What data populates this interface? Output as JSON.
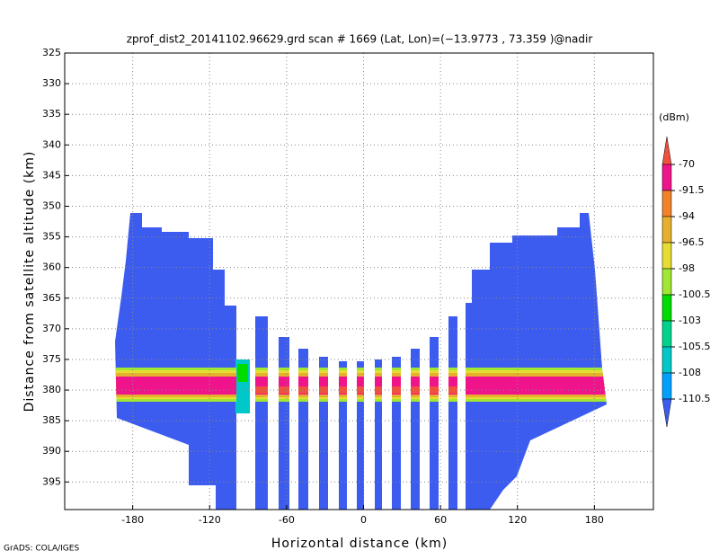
{
  "chart_data": {
    "type": "heatmap",
    "title": "zprof_dist2_20141102.96629.grd  scan # 1669  (Lat, Lon)=(−13.9773 , 73.359 )@nadir",
    "x_label": "Horizontal distance (km)",
    "y_label": "Distance from satellite altitude (km)",
    "xlim": [
      -233,
      226
    ],
    "xticks": [
      -180,
      -120,
      -60,
      0,
      60,
      120,
      180
    ],
    "ylim": [
      325,
      399.5
    ],
    "yticks": [
      325,
      330,
      335,
      340,
      345,
      350,
      355,
      360,
      365,
      370,
      375,
      380,
      385,
      390,
      395
    ],
    "y_inverted": true,
    "grid": true,
    "colorbar": {
      "unit": "(dBm)",
      "levels": [
        -70,
        -91.5,
        -94,
        -96.5,
        -98,
        -100.5,
        -103,
        -105.5,
        -108,
        -110.5
      ],
      "colors": [
        "#f0503c",
        "#f0148c",
        "#f08228",
        "#e6af2d",
        "#e6dc32",
        "#a0e632",
        "#00dc00",
        "#00d28c",
        "#00c8c8",
        "#00a0ff",
        "#3c5cf0"
      ]
    },
    "footer": "GrADS: COLA/IGES"
  }
}
